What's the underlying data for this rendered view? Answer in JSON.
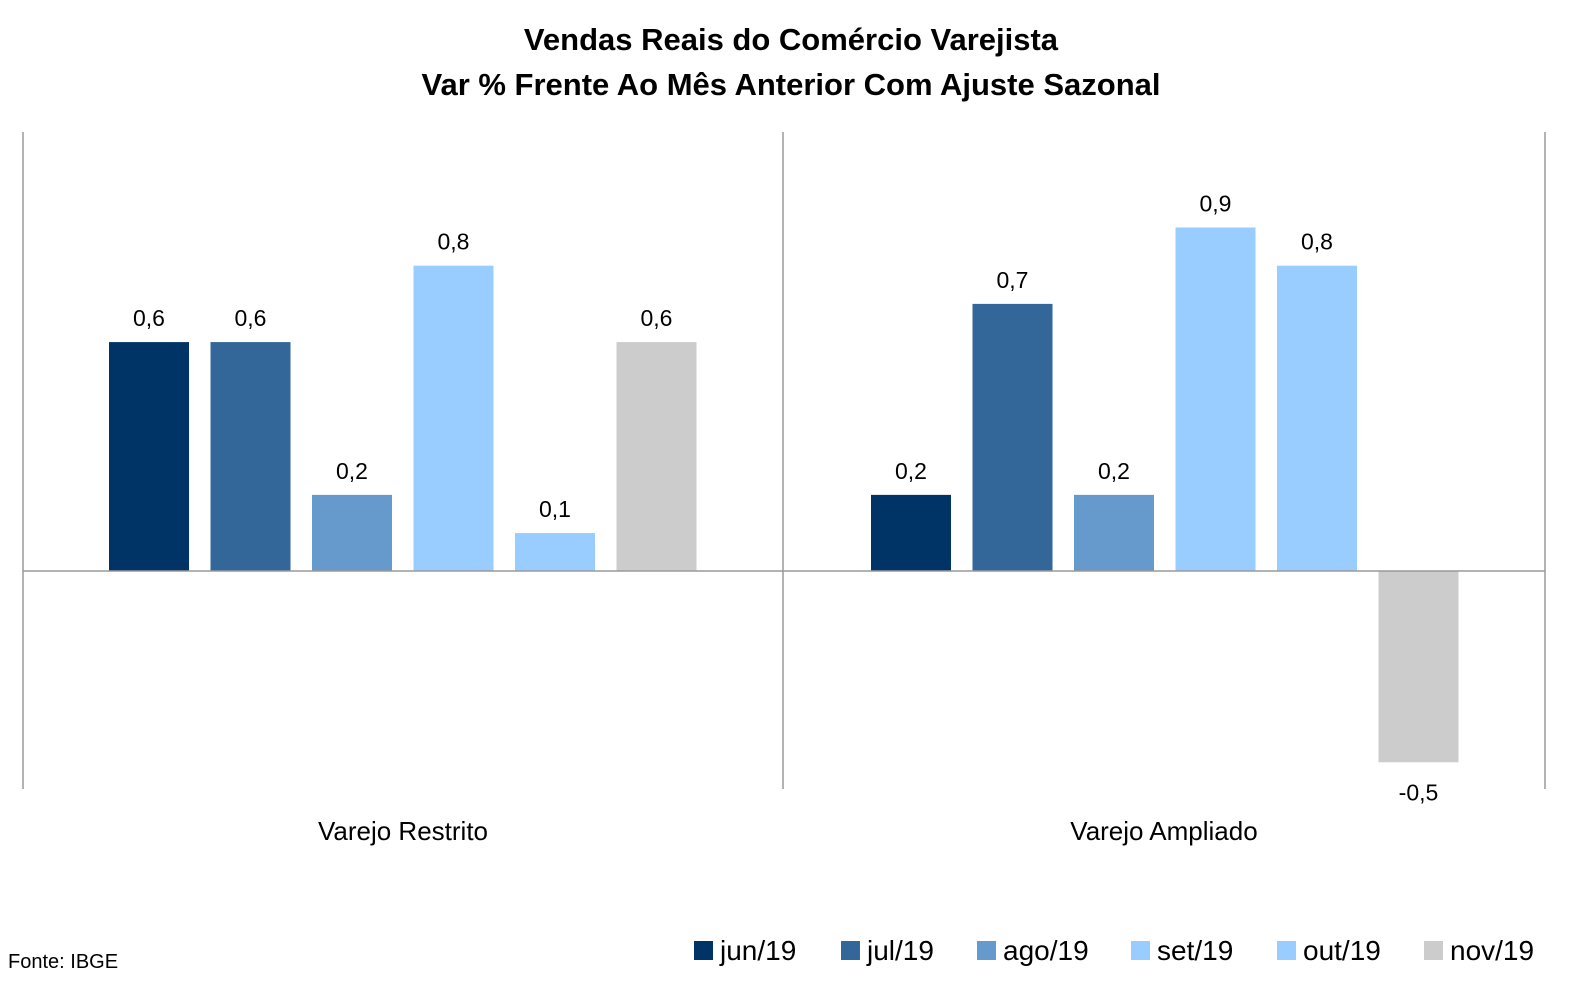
{
  "chart_data": {
    "type": "bar",
    "title": "Vendas Reais do Comércio Varejista",
    "subtitle": "Var % Frente Ao Mês Anterior Com Ajuste Sazonal",
    "xlabel": "",
    "ylabel": "",
    "categories": [
      "Varejo Restrito",
      "Varejo Ampliado"
    ],
    "series": [
      {
        "name": "jun/19",
        "values": [
          0.6,
          0.2
        ],
        "labels": [
          "0,6",
          "0,2"
        ],
        "color": "#003366"
      },
      {
        "name": "jul/19",
        "values": [
          0.6,
          0.7
        ],
        "labels": [
          "0,6",
          "0,7"
        ],
        "color": "#336699"
      },
      {
        "name": "ago/19",
        "values": [
          0.2,
          0.2
        ],
        "labels": [
          "0,2",
          "0,2"
        ],
        "color": "#6699CC"
      },
      {
        "name": "set/19",
        "values": [
          0.8,
          0.9
        ],
        "labels": [
          "0,8",
          "0,9"
        ],
        "color": "#99CCFF"
      },
      {
        "name": "out/19",
        "values": [
          0.1,
          0.8
        ],
        "labels": [
          "0,1",
          "0,8"
        ],
        "color": "#99CCFF"
      },
      {
        "name": "nov/19",
        "values": [
          0.6,
          -0.5
        ],
        "labels": [
          "0,6",
          "-0,5"
        ],
        "color": "#CCCCCC"
      }
    ],
    "ylim": [
      -0.57,
      1.15
    ],
    "grid": false,
    "legend": "bottom-right",
    "source": "Fonte: IBGE"
  }
}
